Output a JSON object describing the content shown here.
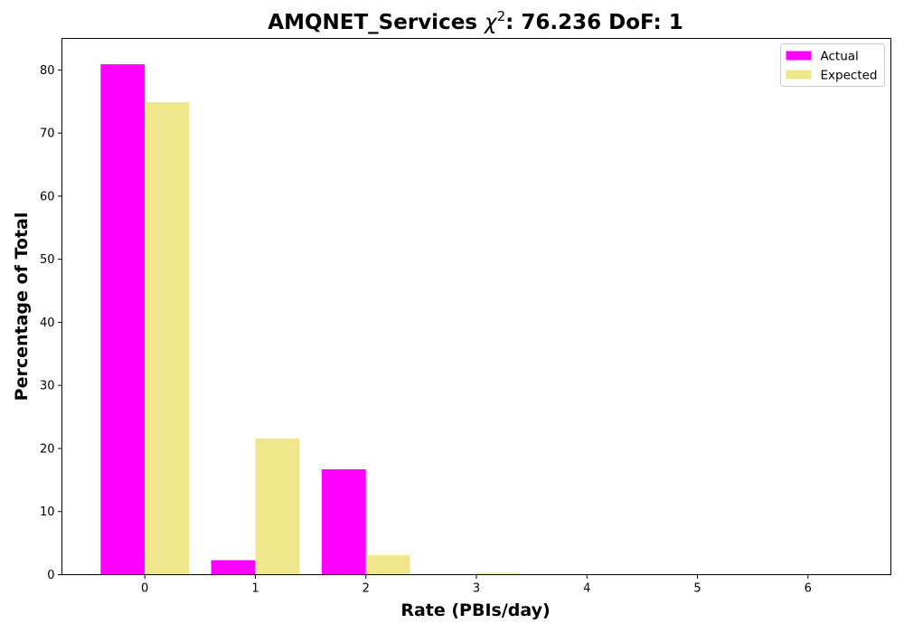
{
  "chart_data": {
    "type": "bar",
    "title": {
      "prefix": "AMQNET_Services ",
      "chi": "χ",
      "superscript": "2",
      "suffix": ": 76.236 DoF: 1"
    },
    "xlabel": "Rate (PBIs/day)",
    "ylabel": "Percentage of Total",
    "categories": [
      "0",
      "1",
      "2",
      "3",
      "4",
      "5",
      "6"
    ],
    "x": [
      0,
      1,
      2,
      3,
      4,
      5,
      6
    ],
    "series": [
      {
        "name": "Actual",
        "color": "#ff00ff",
        "values": [
          80.9,
          2.3,
          16.7,
          0,
          0,
          0,
          0
        ]
      },
      {
        "name": "Expected",
        "color": "#f0e68c",
        "values": [
          74.9,
          21.6,
          3.1,
          0.3,
          0.02,
          0,
          0
        ]
      }
    ],
    "xlim": [
      -0.75,
      6.75
    ],
    "ylim": [
      0,
      85
    ],
    "yticks": [
      0,
      10,
      20,
      30,
      40,
      50,
      60,
      70,
      80
    ],
    "legend": "top-right",
    "grid": false
  }
}
